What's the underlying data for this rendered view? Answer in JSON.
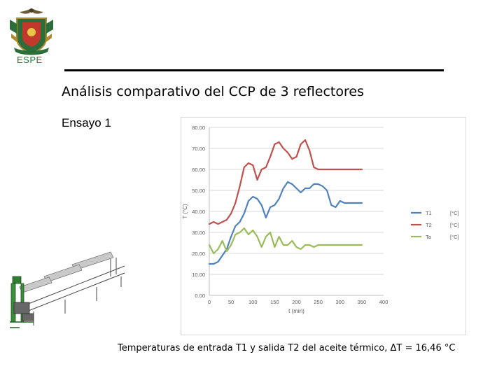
{
  "header": {
    "logo_text": "ESPE",
    "title": "Análisis comparativo del CCP de 3 reflectores",
    "subtitle": "Ensayo 1"
  },
  "caption": "Temperaturas de entrada T1 y salida T2 del aceite térmico, ΔT = 16,46 °C",
  "chart_data": {
    "type": "line",
    "ylabel": "T (°C)",
    "xlabel": "t (min)",
    "ylim": [
      0,
      80
    ],
    "xlim": [
      0,
      400
    ],
    "yticks": [
      "0.00",
      "10.00",
      "20.00",
      "30.00",
      "40.00",
      "50.00",
      "60.00",
      "70.00",
      "80.00"
    ],
    "xticks": [
      "0",
      "50",
      "100",
      "150",
      "200",
      "250",
      "300",
      "350",
      "400"
    ],
    "grid": true,
    "legend_position": "right",
    "series": [
      {
        "name": "T1",
        "unit": "[°C]",
        "color": "#4f81bd",
        "x": [
          0,
          10,
          20,
          30,
          40,
          50,
          60,
          70,
          80,
          90,
          100,
          110,
          120,
          130,
          140,
          150,
          160,
          170,
          180,
          190,
          200,
          210,
          220,
          230,
          240,
          250,
          260,
          270,
          280,
          290,
          300,
          310,
          320,
          330,
          340,
          350
        ],
        "y": [
          15,
          15,
          16,
          19,
          22,
          28,
          33,
          35,
          39,
          45,
          47,
          46,
          43,
          37,
          42,
          43,
          46,
          51,
          54,
          53,
          51,
          49,
          51,
          51,
          53,
          53,
          52,
          50,
          43,
          42,
          45,
          44,
          44,
          44,
          44,
          44
        ]
      },
      {
        "name": "T2",
        "unit": "[°C]",
        "color": "#c0504d",
        "x": [
          0,
          10,
          20,
          30,
          40,
          50,
          60,
          70,
          80,
          90,
          100,
          110,
          120,
          130,
          140,
          150,
          160,
          170,
          180,
          190,
          200,
          210,
          220,
          230,
          240,
          250,
          260,
          270,
          280,
          290,
          300,
          310,
          320,
          330,
          340,
          350
        ],
        "y": [
          34,
          35,
          34,
          35,
          36,
          39,
          44,
          52,
          61,
          63,
          62,
          55,
          60,
          61,
          66,
          72,
          73,
          70,
          68,
          65,
          66,
          72,
          74,
          69,
          61,
          60,
          60,
          60,
          60,
          60,
          60,
          60,
          60,
          60,
          60,
          60
        ]
      },
      {
        "name": "Ta",
        "unit": "[°C]",
        "color": "#9bbb59",
        "x": [
          0,
          10,
          20,
          30,
          40,
          50,
          60,
          70,
          80,
          90,
          100,
          110,
          120,
          130,
          140,
          150,
          160,
          170,
          180,
          190,
          200,
          210,
          220,
          230,
          240,
          250,
          260,
          270,
          280,
          290,
          300,
          310,
          320,
          330,
          340,
          350
        ],
        "y": [
          24,
          20,
          22,
          26,
          21,
          24,
          29,
          30,
          32,
          29,
          31,
          28,
          23,
          28,
          30,
          23,
          28,
          24,
          24,
          26,
          23,
          22,
          24,
          24,
          23,
          24,
          24,
          24,
          24,
          24,
          24,
          24,
          24,
          24,
          24,
          24
        ]
      }
    ]
  }
}
